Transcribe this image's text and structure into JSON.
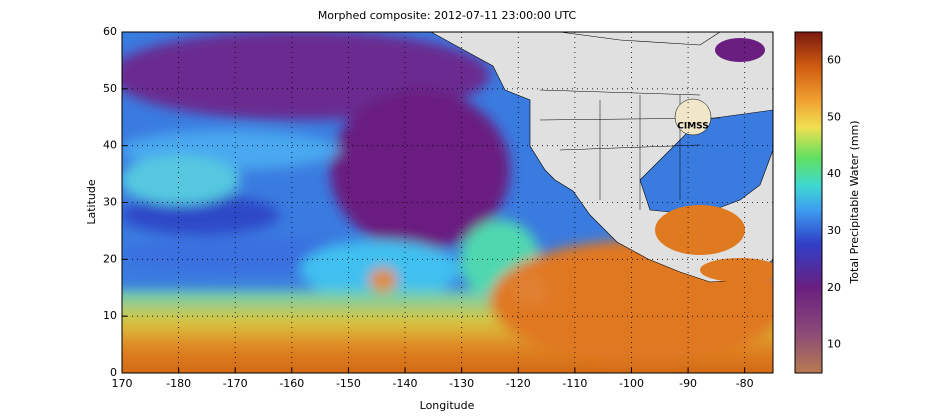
{
  "map": {
    "title": "Morphed composite: 2012-07-11 23:00:00 UTC",
    "x_label": "Longitude",
    "y_label": "Latitude",
    "xlim": [
      -190,
      -75
    ],
    "xticks": [
      {
        "value": -190,
        "label": "170"
      },
      -180,
      -170,
      -160,
      -150,
      -140,
      -130,
      -120,
      -110,
      -100,
      -90,
      -80
    ],
    "ylim": [
      0,
      60
    ],
    "yticks": [
      0,
      10,
      20,
      30,
      40,
      50,
      60
    ],
    "grid": true,
    "logo": "CIMSS",
    "colorbar": {
      "label": "Total Precipitable Water (mm)",
      "lim": [
        5,
        65
      ],
      "ticks": [
        10,
        20,
        30,
        40,
        50,
        60
      ]
    }
  }
}
